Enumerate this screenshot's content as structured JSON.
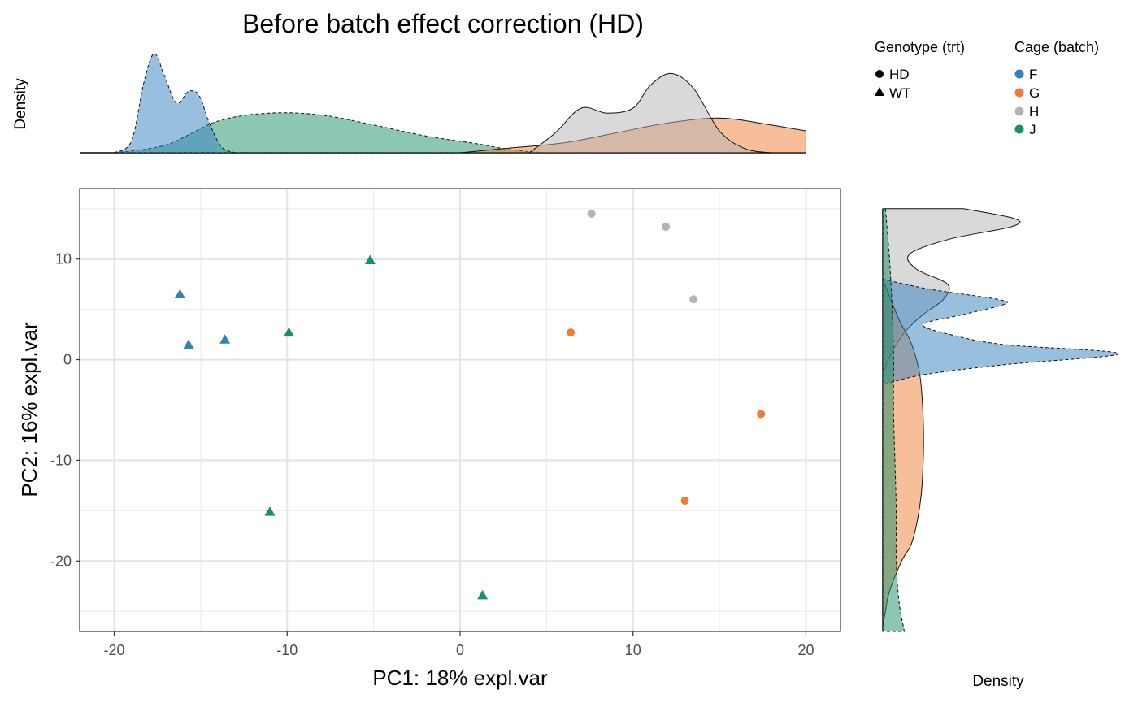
{
  "chart_data": {
    "type": "scatter",
    "title": "Before batch effect correction (HD)",
    "xlabel": "PC1: 18% expl.var",
    "ylabel": "PC2: 16% expl.var",
    "xlim": [
      -22,
      22
    ],
    "ylim": [
      -27,
      17
    ],
    "x_ticks": [
      -20,
      -10,
      0,
      10,
      20
    ],
    "y_ticks": [
      -20,
      -10,
      0,
      10
    ],
    "grid": true,
    "top_density_label": "Density",
    "right_density_label": "Density",
    "legend_genotype": {
      "title": "Genotype (trt)",
      "items": [
        {
          "label": "HD",
          "shape": "circle"
        },
        {
          "label": "WT",
          "shape": "triangle"
        }
      ]
    },
    "legend_batch": {
      "title": "Cage (batch)",
      "items": [
        {
          "label": "F",
          "color": "#3182bd"
        },
        {
          "label": "G",
          "color": "#ee7e33"
        },
        {
          "label": "H",
          "color": "#b4b4b4"
        },
        {
          "label": "J",
          "color": "#1a9068"
        }
      ]
    },
    "points": [
      {
        "x": -16.2,
        "y": 6.5,
        "batch": "F",
        "genotype": "WT"
      },
      {
        "x": -15.7,
        "y": 1.5,
        "batch": "F",
        "genotype": "WT"
      },
      {
        "x": -13.6,
        "y": 2.0,
        "batch": "F",
        "genotype": "WT"
      },
      {
        "x": -5.2,
        "y": 9.9,
        "batch": "J",
        "genotype": "WT"
      },
      {
        "x": -9.9,
        "y": 2.7,
        "batch": "J",
        "genotype": "WT"
      },
      {
        "x": -11.0,
        "y": -15.1,
        "batch": "J",
        "genotype": "WT"
      },
      {
        "x": 1.3,
        "y": -23.4,
        "batch": "J",
        "genotype": "WT"
      },
      {
        "x": 6.4,
        "y": 2.7,
        "batch": "G",
        "genotype": "HD"
      },
      {
        "x": 17.4,
        "y": -5.4,
        "batch": "G",
        "genotype": "HD"
      },
      {
        "x": 13.0,
        "y": -14.0,
        "batch": "G",
        "genotype": "HD"
      },
      {
        "x": 7.6,
        "y": 14.5,
        "batch": "H",
        "genotype": "HD"
      },
      {
        "x": 11.9,
        "y": 13.2,
        "batch": "H",
        "genotype": "HD"
      },
      {
        "x": 13.5,
        "y": 6.0,
        "batch": "H",
        "genotype": "HD"
      }
    ],
    "top_density": {
      "x_range": [
        -22,
        20
      ],
      "series": [
        {
          "batch": "J",
          "color": "#1a9068",
          "dashed": true,
          "x": [
            -20,
            -17,
            -14,
            -11,
            -8,
            -5,
            -2,
            1,
            3,
            5
          ],
          "y": [
            0,
            0.08,
            0.32,
            0.4,
            0.38,
            0.28,
            0.17,
            0.09,
            0.03,
            0
          ]
        },
        {
          "batch": "G",
          "color": "#ee7e33",
          "dashed": false,
          "x": [
            0,
            3,
            6,
            9,
            12,
            15,
            18,
            20
          ],
          "y": [
            0,
            0.05,
            0.1,
            0.2,
            0.3,
            0.35,
            0.28,
            0.22
          ]
        },
        {
          "batch": "H",
          "color": "#b4b4b4",
          "dashed": false,
          "x": [
            4,
            5.5,
            7,
            8.5,
            10,
            11,
            12.2,
            13.5,
            15,
            16.5,
            18
          ],
          "y": [
            0,
            0.2,
            0.45,
            0.4,
            0.45,
            0.68,
            0.8,
            0.65,
            0.22,
            0.04,
            0
          ]
        },
        {
          "batch": "F",
          "color": "#3182bd",
          "dashed": true,
          "x": [
            -20,
            -19,
            -18.3,
            -17.7,
            -17.1,
            -16.4,
            -15.7,
            -15.1,
            -14.5,
            -13.8,
            -13
          ],
          "y": [
            0,
            0.12,
            0.7,
            1.0,
            0.78,
            0.5,
            0.62,
            0.58,
            0.3,
            0.06,
            0
          ]
        }
      ]
    },
    "right_density": {
      "y_range": [
        -27,
        15
      ],
      "series": [
        {
          "batch": "H",
          "color": "#b4b4b4",
          "dashed": false,
          "y": [
            15,
            14,
            13.2,
            12,
            10.5,
            9,
            7.5,
            6,
            4.5,
            3,
            1.5,
            0,
            -1.5
          ],
          "w": [
            0.6,
            0.98,
            0.95,
            0.5,
            0.2,
            0.25,
            0.48,
            0.45,
            0.3,
            0.18,
            0.1,
            0.04,
            0
          ]
        },
        {
          "batch": "G",
          "color": "#ee7e33",
          "dashed": false,
          "y": [
            8,
            4,
            2,
            0,
            -2,
            -6,
            -10,
            -14,
            -18,
            -20,
            -23,
            -25,
            -26.5
          ],
          "w": [
            0,
            0.12,
            0.2,
            0.25,
            0.28,
            0.3,
            0.3,
            0.28,
            0.22,
            0.14,
            0.05,
            0.02,
            0
          ]
        },
        {
          "batch": "F",
          "color": "#3182bd",
          "dashed": true,
          "y": [
            8,
            7,
            6,
            5.5,
            4.5,
            3.5,
            2.5,
            1.5,
            0.6,
            -0.5,
            -1.5,
            -2.5
          ],
          "w": [
            0,
            0.35,
            0.85,
            0.9,
            0.6,
            0.3,
            0.5,
            0.9,
            1.75,
            0.9,
            0.3,
            0
          ]
        },
        {
          "batch": "J",
          "color": "#1a9068",
          "dashed": true,
          "y": [
            15,
            10,
            5,
            0,
            -5,
            -10,
            -15,
            -20,
            -24,
            -27
          ],
          "w": [
            0.02,
            0.05,
            0.07,
            0.08,
            0.08,
            0.09,
            0.1,
            0.1,
            0.12,
            0.16
          ]
        }
      ]
    }
  }
}
